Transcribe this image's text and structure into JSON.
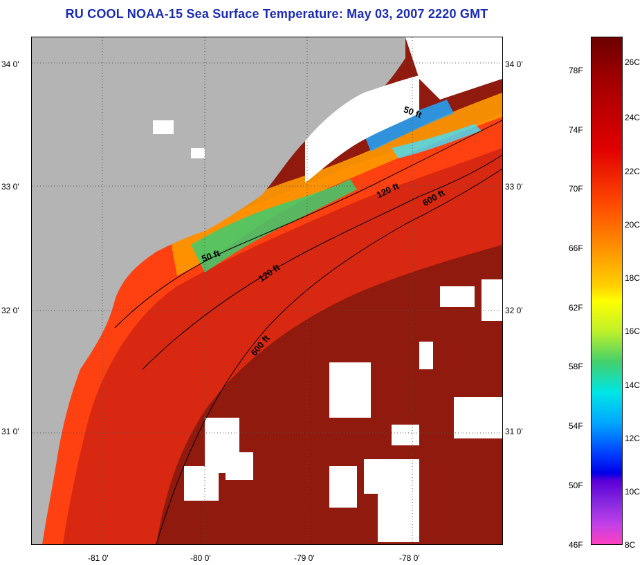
{
  "title": "RU COOL  NOAA-15  Sea Surface Temperature:  May 03, 2007 2220 GMT",
  "map": {
    "lat_labels": [
      "34 0'",
      "33 0'",
      "32 0'",
      "31 0'"
    ],
    "lon_labels": [
      "-81 0'",
      "-80 0'",
      "-79 0'",
      "-78 0'"
    ],
    "contours": [
      "50 ft",
      "50 ft",
      "120 ft",
      "120 ft",
      "600 ft",
      "600 ft"
    ]
  },
  "colorbar": {
    "f_labels": [
      "78F",
      "74F",
      "70F",
      "66F",
      "62F",
      "58F",
      "54F",
      "50F",
      "46F"
    ],
    "c_labels": [
      "26C",
      "24C",
      "22C",
      "20C",
      "18C",
      "16C",
      "14C",
      "12C",
      "10C",
      "8C"
    ]
  },
  "colors": {
    "title": "#1a2bb0",
    "land": "#b4b4b4",
    "warm": "#8f1a0d",
    "shelf": "#e83010"
  }
}
